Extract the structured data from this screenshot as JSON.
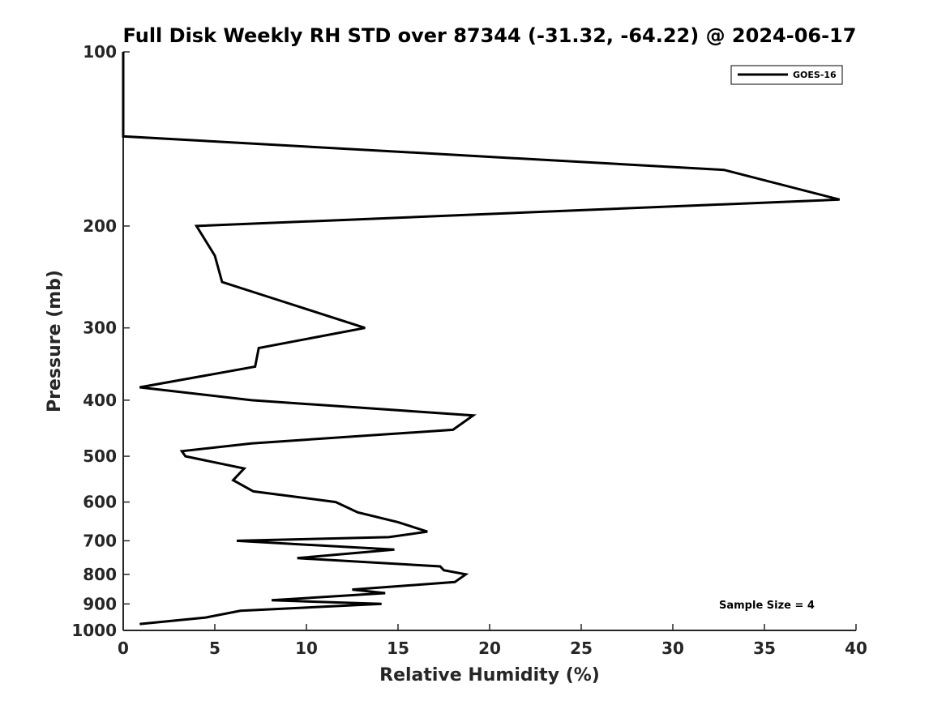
{
  "chart_data": {
    "type": "line",
    "title": "Full Disk Weekly RH STD over 87344 (-31.32, -64.22) @ 2024-06-17",
    "xlabel": "Relative Humidity (%)",
    "ylabel": "Pressure (mb)",
    "xlim": [
      0,
      40
    ],
    "ylim": [
      100,
      1000
    ],
    "yscale": "log",
    "yreversed": true,
    "xticks": [
      0,
      5,
      10,
      15,
      20,
      25,
      30,
      35,
      40
    ],
    "xtick_labels": [
      "0",
      "5",
      "10",
      "15",
      "20",
      "25",
      "30",
      "35",
      "40"
    ],
    "yticks": [
      100,
      200,
      300,
      400,
      500,
      600,
      700,
      800,
      900,
      1000
    ],
    "ytick_labels": [
      "100",
      "200",
      "300",
      "400",
      "500",
      "600",
      "700",
      "800",
      "900",
      "1000"
    ],
    "grid": false,
    "legend_position": "top-right",
    "annotation": "Sample Size = 4",
    "series": [
      {
        "name": "GOES-16",
        "color": "#000000",
        "x": [
          0,
          0,
          0,
          32.8,
          39.1,
          4.0,
          5.0,
          5.4,
          8.7,
          13.2,
          7.4,
          7.2,
          0.9,
          7.0,
          19.1,
          18.0,
          7.0,
          3.2,
          3.4,
          6.6,
          6.0,
          7.1,
          11.6,
          12.8,
          15.0,
          16.6,
          14.5,
          6.2,
          14.8,
          9.5,
          17.3,
          17.5,
          18.7,
          18.1,
          12.5,
          14.3,
          8.1,
          14.1,
          6.4,
          4.5,
          0.9
        ],
        "y": [
          100,
          125,
          140,
          160,
          180,
          200,
          225,
          250,
          270,
          300,
          325,
          350,
          380,
          400,
          425,
          450,
          475,
          490,
          500,
          525,
          550,
          575,
          600,
          625,
          650,
          675,
          690,
          700,
          725,
          750,
          775,
          787,
          800,
          825,
          850,
          862,
          887,
          900,
          925,
          950,
          975
        ]
      }
    ]
  }
}
